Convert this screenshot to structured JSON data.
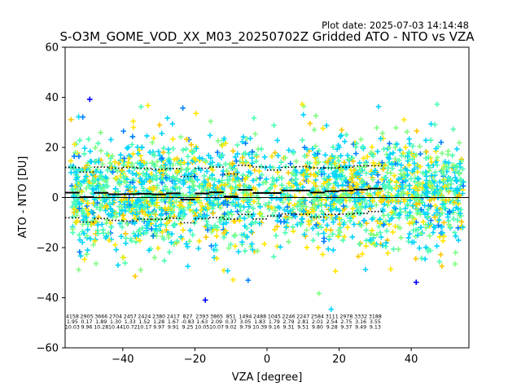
{
  "chart_data": {
    "type": "scatter",
    "plot_date": "Plot date: 2025-07-03 14:14:48",
    "title": "S-O3M_GOME_VOD_XX_M03_20250702Z Gridded ATO - NTO vs VZA",
    "xlabel": "VZA [degree]",
    "ylabel": "ATO - NTO [DU]",
    "xlim": [
      -56,
      56
    ],
    "ylim": [
      -60,
      60
    ],
    "x_ticks": [
      -40,
      -20,
      0,
      20,
      40
    ],
    "y_ticks": [
      -60,
      -40,
      -20,
      0,
      20,
      40,
      60
    ],
    "x_tick_labels": [
      "−40",
      "−20",
      "0",
      "20",
      "40"
    ],
    "y_tick_labels": [
      "−60",
      "−40",
      "−20",
      "0",
      "20",
      "40",
      "60"
    ],
    "marker": "+",
    "colors": [
      "#0000ff",
      "#0080ff",
      "#00d4ff",
      "#4dffb3",
      "#80ff80",
      "#ffe600",
      "#ffc800"
    ],
    "grid": false,
    "reference_line_y": 0,
    "bins": [
      {
        "x": -54,
        "count": "4158",
        "mean": "1.95",
        "std": "10.03"
      },
      {
        "x": -50,
        "count": "2905",
        "mean": "0.17",
        "std": "9.96"
      },
      {
        "x": -46,
        "count": "3666",
        "mean": "1.89",
        "std": "10.28"
      },
      {
        "x": -42,
        "count": "2704",
        "mean": "1.30",
        "std": "10.44"
      },
      {
        "x": -38,
        "count": "2457",
        "mean": "1.33",
        "std": "10.72"
      },
      {
        "x": -34,
        "count": "2424",
        "mean": "1.52",
        "std": "10.17"
      },
      {
        "x": -30,
        "count": "2380",
        "mean": "1.28",
        "std": "9.97"
      },
      {
        "x": -26,
        "count": "2417",
        "mean": "1.67",
        "std": "9.91"
      },
      {
        "x": -22,
        "count": "827",
        "mean": "-0.83",
        "std": "9.25"
      },
      {
        "x": -18,
        "count": "2393",
        "mean": "1.63",
        "std": "10.05"
      },
      {
        "x": -14,
        "count": "3865",
        "mean": "2.09",
        "std": "10.07"
      },
      {
        "x": -10,
        "count": "851",
        "mean": "0.37",
        "std": "9.02"
      },
      {
        "x": -6,
        "count": "1494",
        "mean": "3.05",
        "std": "9.79"
      },
      {
        "x": -2,
        "count": "2488",
        "mean": "1.83",
        "std": "10.39"
      },
      {
        "x": 2,
        "count": "1045",
        "mean": "1.79",
        "std": "9.16"
      },
      {
        "x": 6,
        "count": "2246",
        "mean": "2.79",
        "std": "9.31"
      },
      {
        "x": 10,
        "count": "2247",
        "mean": "2.81",
        "std": "9.51"
      },
      {
        "x": 14,
        "count": "2584",
        "mean": "2.01",
        "std": "9.80"
      },
      {
        "x": 18,
        "count": "3111",
        "mean": "2.54",
        "std": "9.28"
      },
      {
        "x": 22,
        "count": "2978",
        "mean": "2.75",
        "std": "9.37"
      },
      {
        "x": 26,
        "count": "3332",
        "mean": "3.16",
        "std": "9.49"
      },
      {
        "x": 30,
        "count": "3188",
        "mean": "3.55",
        "std": "9.13"
      }
    ]
  }
}
